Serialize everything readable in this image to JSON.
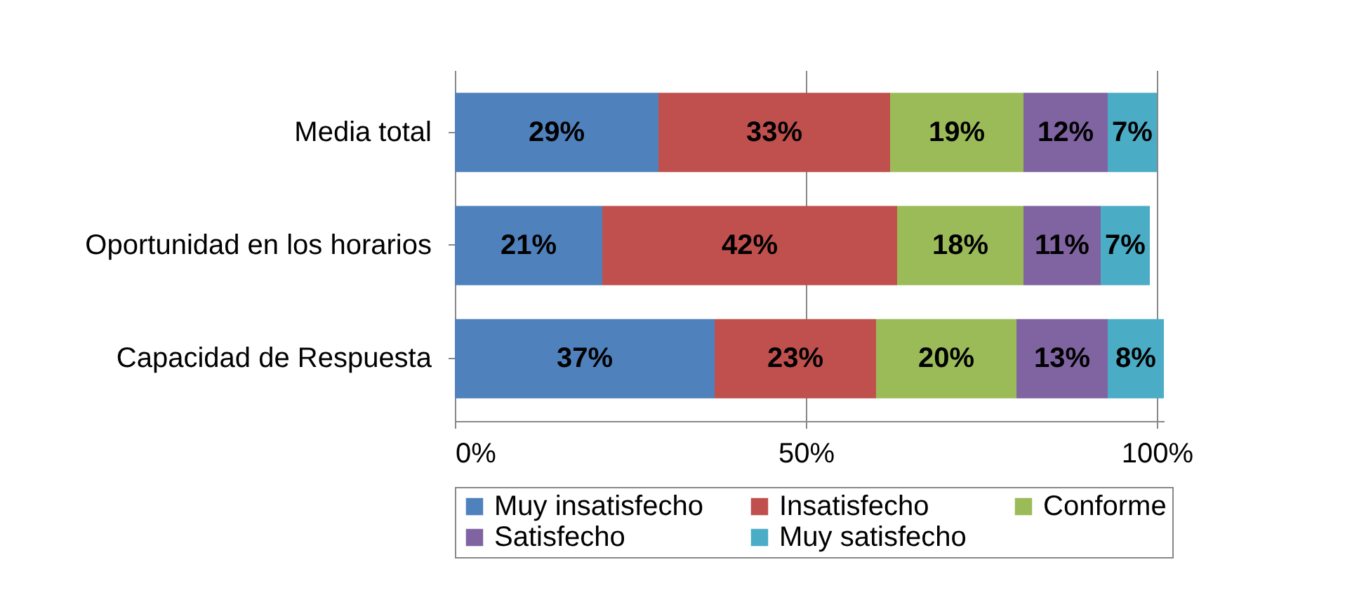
{
  "chart_data": {
    "type": "bar",
    "orientation": "horizontal",
    "stacked": true,
    "categories": [
      "Media total",
      "Oportunidad en los horarios",
      "Capacidad de Respuesta"
    ],
    "series": [
      {
        "name": "Muy insatisfecho",
        "color": "#4f81bd",
        "values": [
          29,
          21,
          37
        ],
        "value_labels": [
          "29%",
          "21%",
          "37%"
        ]
      },
      {
        "name": "Insatisfecho",
        "color": "#c0504d",
        "values": [
          33,
          42,
          23
        ],
        "value_labels": [
          "33%",
          "42%",
          "23%"
        ]
      },
      {
        "name": "Conforme",
        "color": "#9bbb59",
        "values": [
          19,
          18,
          20
        ],
        "value_labels": [
          "19%",
          "18%",
          "20%"
        ]
      },
      {
        "name": "Satisfecho",
        "color": "#8064a2",
        "values": [
          12,
          11,
          13
        ],
        "value_labels": [
          "12%",
          "11%",
          "13%"
        ]
      },
      {
        "name": "Muy satisfecho",
        "color": "#4bacc6",
        "values": [
          7,
          7,
          8
        ],
        "value_labels": [
          "7%",
          "7%",
          "8%"
        ]
      }
    ],
    "xlim": [
      0,
      101
    ],
    "xticks": [
      {
        "value": 0,
        "label": "0%"
      },
      {
        "value": 50,
        "label": "50%"
      },
      {
        "value": 100,
        "label": "100%"
      }
    ],
    "grid": "x",
    "legend": "bottom"
  }
}
